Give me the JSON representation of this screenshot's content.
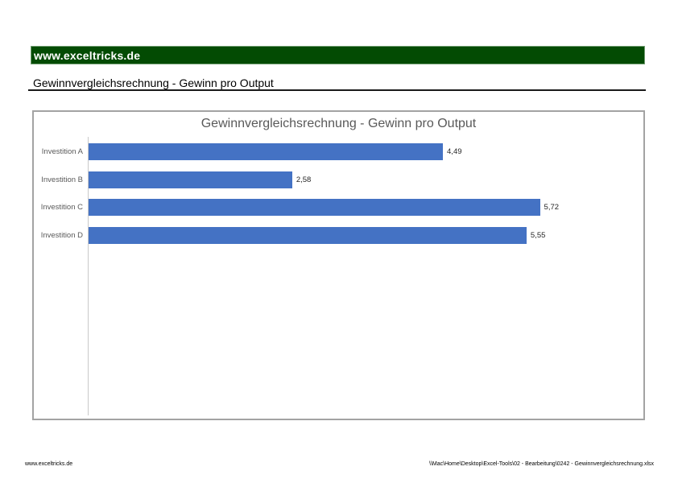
{
  "page": {
    "header_bar": {
      "text": "www.exceltricks.de",
      "bg_color": "#034b03",
      "text_color": "#ffffff"
    },
    "subtitle": "Gewinnvergleichsrechnung - Gewinn pro Output",
    "footer": {
      "left": "www.exceltricks.de",
      "right": "\\\\Mac\\Home\\Desktop\\Excel-Tools\\02 - Bearbeitung\\0242 - Gewinnvergleichsrechnung.xlsx"
    }
  },
  "chart_data": {
    "type": "bar",
    "orientation": "horizontal",
    "title": "Gewinnvergleichsrechnung - Gewinn pro Output",
    "categories": [
      "Investition A",
      "Investition B",
      "Investition C",
      "Investition D"
    ],
    "values": [
      4.49,
      2.58,
      5.72,
      5.55
    ],
    "value_labels": [
      "4,49",
      "2,58",
      "5,72",
      "5,55"
    ],
    "xlim": [
      0,
      6
    ],
    "bar_color": "#4472c4",
    "title_color": "#595959",
    "grid": false,
    "legend": false,
    "data_labels": true
  }
}
